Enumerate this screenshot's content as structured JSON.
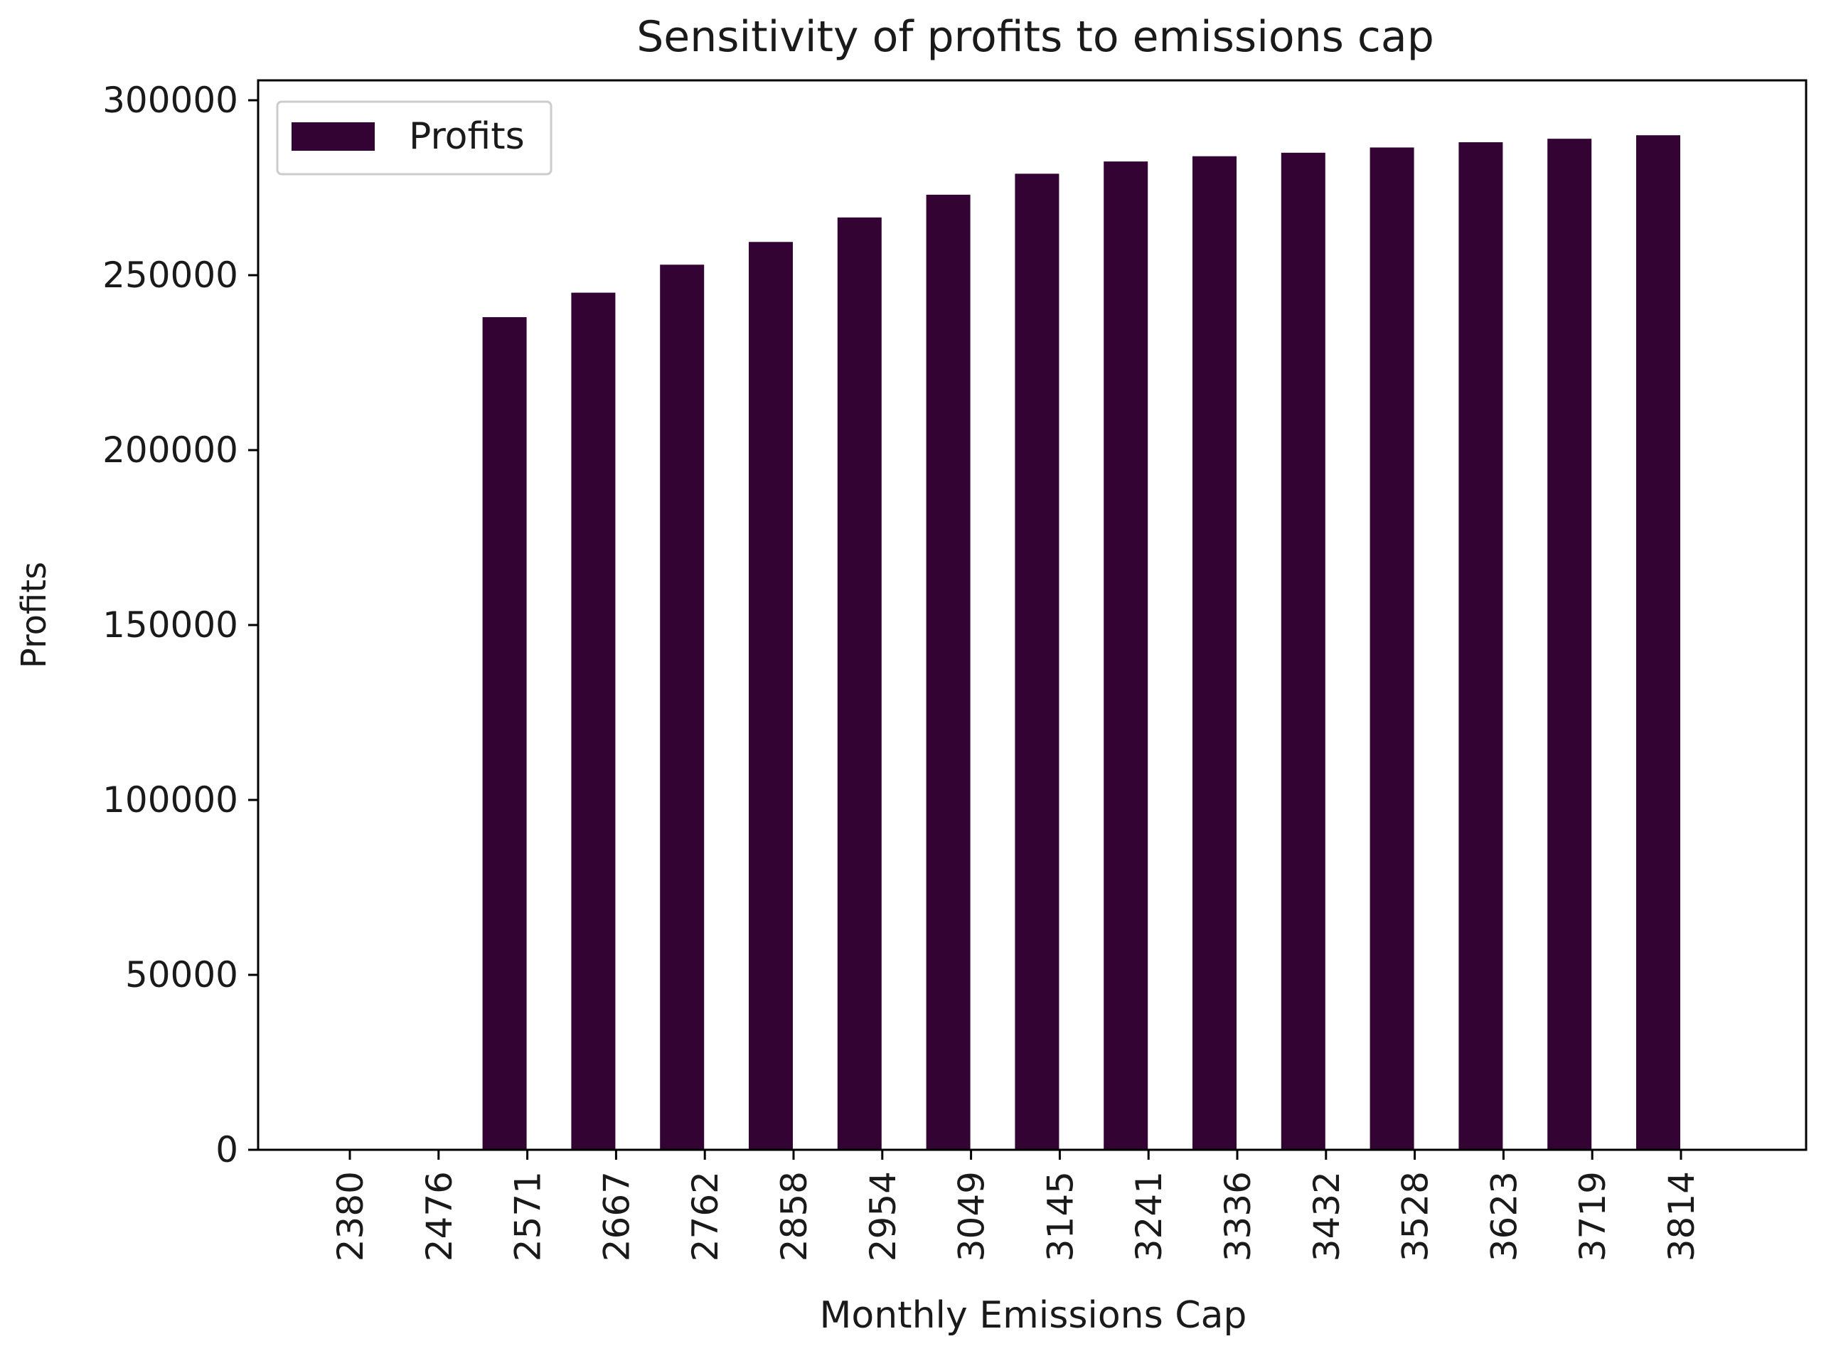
{
  "chart_data": {
    "type": "bar",
    "title": "Sensitivity of profits to emissions cap",
    "xlabel": "Monthly Emissions Cap",
    "ylabel": "Profits",
    "x_tick_labels": [
      "2380",
      "2476",
      "2571",
      "2667",
      "2762",
      "2858",
      "2954",
      "3049",
      "3145",
      "3241",
      "3336",
      "3432",
      "3528",
      "3623",
      "3719",
      "3814"
    ],
    "y_ticks": [
      0,
      50000,
      100000,
      150000,
      200000,
      250000,
      300000
    ],
    "y_tick_labels": [
      "0",
      "50000",
      "100000",
      "150000",
      "200000",
      "250000",
      "300000"
    ],
    "ylim": [
      0,
      300000
    ],
    "grid": false,
    "legend_position": "top-left",
    "series": [
      {
        "name": "Profits",
        "color": "#330433",
        "values": [
          null,
          null,
          238000,
          245000,
          253000,
          259500,
          266500,
          273000,
          279000,
          282500,
          284000,
          285000,
          286500,
          288000,
          289000,
          290000
        ]
      }
    ]
  }
}
